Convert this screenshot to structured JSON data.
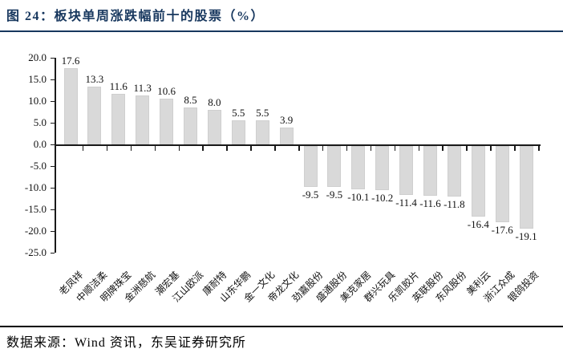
{
  "header": {
    "title": "图 24：板块单周涨跌幅前十的股票（%）"
  },
  "footer": {
    "source": "数据来源：Wind 资讯，东吴证券研究所"
  },
  "chart_data": {
    "type": "bar",
    "title": "图 24：板块单周涨跌幅前十的股票（%）",
    "categories": [
      "老凤祥",
      "中顺洁柔",
      "明牌珠宝",
      "金洲慈航",
      "潮宏基",
      "江山欧派",
      "康耐特",
      "山东华鹏",
      "金一文化",
      "帝龙文化",
      "劲嘉股份",
      "盛通股份",
      "美克家居",
      "群兴玩具",
      "乐凯胶片",
      "英联股份",
      "东风股份",
      "美利云",
      "浙江众成",
      "银鸽投资"
    ],
    "values": [
      17.6,
      13.3,
      11.6,
      11.3,
      10.6,
      8.5,
      8.0,
      5.5,
      5.5,
      3.9,
      -9.5,
      -9.5,
      -10.1,
      -10.2,
      -11.4,
      -11.6,
      -11.8,
      -16.4,
      -17.6,
      -19.1
    ],
    "xlabel": "",
    "ylabel": "",
    "ylim": [
      -25.0,
      20.0
    ],
    "ytick_step": 5.0,
    "yticks": [
      "20.0",
      "15.0",
      "10.0",
      "5.0",
      "0.0",
      "-5.0",
      "-10.0",
      "-15.0",
      "-20.0",
      "-25.0"
    ],
    "grid": false,
    "legend_position": "none",
    "value_labels_shown": true,
    "category_label_rotation_deg": 45
  },
  "colors": {
    "title_text": "#17375e",
    "title_rule": "#17375e",
    "bar_fill": "#d9d9d9",
    "bar_border": "#cfcfcf",
    "axis": "#1a1a1a",
    "tick": "#1a1a1a",
    "label_text": "#111111",
    "footer_rule": "#000000",
    "source_text": "#000000",
    "background": "#ffffff"
  }
}
